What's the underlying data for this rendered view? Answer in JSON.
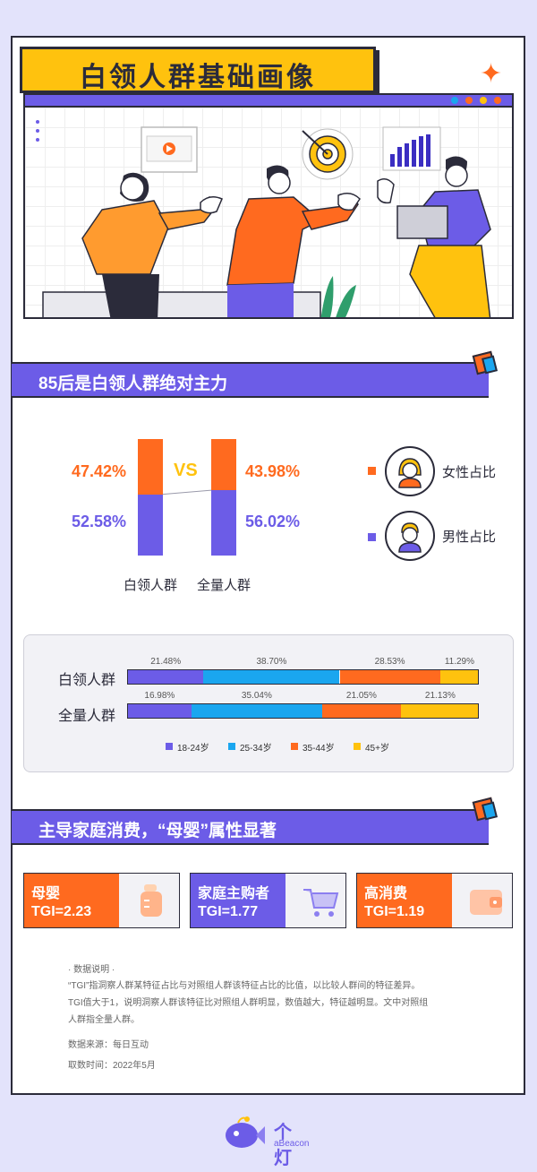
{
  "header": {
    "title": "白领人群基础画像"
  },
  "section1": {
    "title": "85后是白领人群绝对主力"
  },
  "gender": {
    "vs": "VS",
    "groups": [
      {
        "label": "白领人群",
        "female_pct": "47.42%",
        "male_pct": "52.58%",
        "female": 47.42,
        "male": 52.58
      },
      {
        "label": "全量人群",
        "female_pct": "43.98%",
        "male_pct": "56.02%",
        "female": 43.98,
        "male": 56.02
      }
    ],
    "legend": {
      "female": "女性占比",
      "male": "男性占比"
    }
  },
  "age": {
    "rows": [
      {
        "label": "白领人群",
        "values": [
          21.48,
          38.7,
          28.53,
          11.29
        ],
        "labels": [
          "21.48%",
          "38.70%",
          "28.53%",
          "11.29%"
        ]
      },
      {
        "label": "全量人群",
        "values": [
          16.98,
          35.04,
          21.05,
          21.13
        ],
        "labels": [
          "16.98%",
          "35.04%",
          "21.05%",
          "21.13%"
        ]
      }
    ],
    "legend": [
      "18-24岁",
      "25-34岁",
      "35-44岁",
      "45+岁"
    ],
    "colors": [
      "#6c5ce7",
      "#1aa6ef",
      "#ff6a1f",
      "#ffc20e"
    ]
  },
  "section2": {
    "title": "主导家庭消费，“母婴”属性显著"
  },
  "tgi": [
    {
      "title": "母婴",
      "value": "TGI=2.23",
      "color": "#ff6a1f",
      "icon": "baby-bottle-icon"
    },
    {
      "title": "家庭主购者",
      "value": "TGI=1.77",
      "color": "#6c5ce7",
      "icon": "shopping-cart-icon"
    },
    {
      "title": "高消费",
      "value": "TGI=1.19",
      "color": "#ff6a1f",
      "icon": "wallet-icon"
    }
  ],
  "notes": {
    "heading": "· 数据说明 ·",
    "line1": "“TGI”指洞察人群某特征占比与对照组人群该特征占比的比值，以比较人群间的特征差异。",
    "line2": "TGI值大于1，说明洞察人群该特征比对照组人群明显，数值越大，特征越明显。文中对照组",
    "line3": "人群指全量人群。",
    "source": "数据来源：每日互动",
    "time": "取数时间：2022年5月"
  },
  "footer": {
    "logo_cn": "个灯",
    "logo_en": "aBeacon"
  },
  "colors": {
    "purple": "#6c5ce7",
    "orange": "#ff6a1f",
    "yellow": "#ffc20e",
    "blue": "#1aa6ef",
    "dark": "#2b2b3a"
  }
}
